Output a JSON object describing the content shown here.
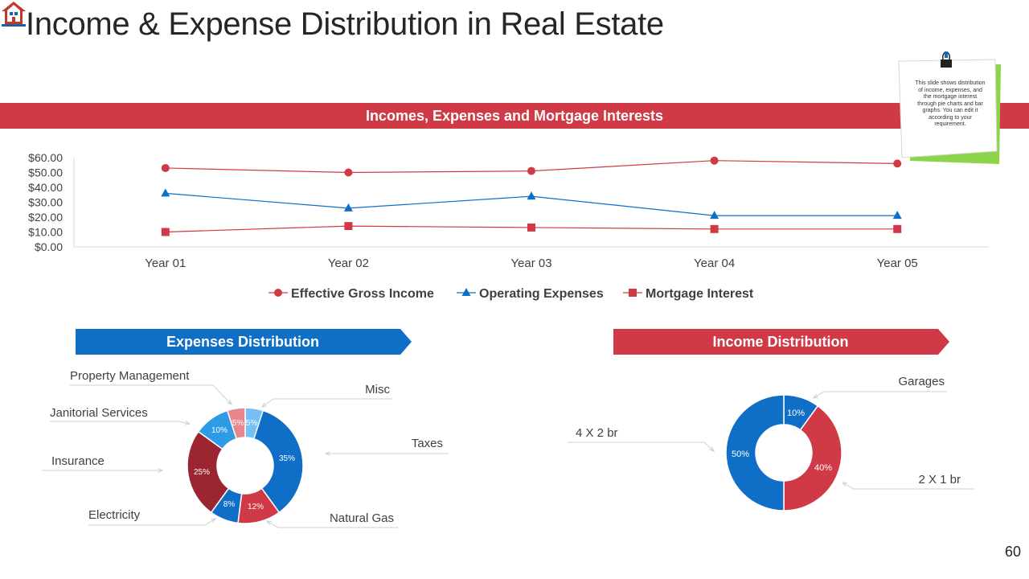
{
  "page": {
    "title": "Income & Expense Distribution in Real Estate",
    "page_number": "60"
  },
  "banner": {
    "title": "Incomes, Expenses and Mortgage Interests"
  },
  "note": {
    "text": "This slide shows distribution of income, expenses, and the mortgage interest through pie charts and bar graphs. You can edit it according to your requirement."
  },
  "colors": {
    "red": "#d03a46",
    "blue": "#0f6fc6",
    "green": "#8cd448",
    "dark_red": "#9b2530",
    "light_blue": "#2e9be6",
    "pale_blue": "#74c0f5",
    "pink": "#e8868e"
  },
  "chart_data": [
    {
      "type": "line",
      "categories": [
        "Year 01",
        "Year 02",
        "Year 03",
        "Year 04",
        "Year 05"
      ],
      "y_tick_labels": [
        "$0.00",
        "$10.00",
        "$20.00",
        "$30.00",
        "$40.00",
        "$50.00",
        "$60.00"
      ],
      "ylim": [
        0,
        60
      ],
      "legend_position": "bottom",
      "series": [
        {
          "name": "Effective Gross Income",
          "values": [
            53,
            50,
            51,
            58,
            56
          ],
          "color": "#d03a46",
          "marker": "circle"
        },
        {
          "name": "Operating Expenses",
          "values": [
            36,
            26,
            34,
            21,
            21
          ],
          "color": "#0f6fc6",
          "marker": "triangle"
        },
        {
          "name": "Mortgage Interest",
          "values": [
            10,
            14,
            13,
            12,
            12
          ],
          "color": "#d03a46",
          "marker": "square"
        }
      ]
    },
    {
      "type": "pie",
      "variant": "donut",
      "title": "Expenses Distribution",
      "slices": [
        {
          "label": "Misc",
          "value": 5,
          "value_label": "5%",
          "color": "#74c0f5"
        },
        {
          "label": "Taxes",
          "value": 35,
          "value_label": "35%",
          "color": "#0f6fc6"
        },
        {
          "label": "Natural Gas",
          "value": 12,
          "value_label": "12%",
          "color": "#d03a46"
        },
        {
          "label": "Electricity",
          "value": 8,
          "value_label": "8%",
          "color": "#0f6fc6"
        },
        {
          "label": "Insurance",
          "value": 25,
          "value_label": "25%",
          "color": "#9b2530"
        },
        {
          "label": "Janitorial Services",
          "value": 10,
          "value_label": "10%",
          "color": "#2e9be6"
        },
        {
          "label": "Property Management",
          "value": 5,
          "value_label": "5%",
          "color": "#e8868e"
        }
      ]
    },
    {
      "type": "pie",
      "variant": "donut",
      "title": "Income Distribution",
      "slices": [
        {
          "label": "Garages",
          "value": 10,
          "value_label": "10%",
          "color": "#0f6fc6"
        },
        {
          "label": "2 X 1 br",
          "value": 40,
          "value_label": "40%",
          "color": "#d03a46"
        },
        {
          "label": "4 X 2 br",
          "value": 50,
          "value_label": "50%",
          "color": "#0f6fc6"
        }
      ]
    }
  ]
}
